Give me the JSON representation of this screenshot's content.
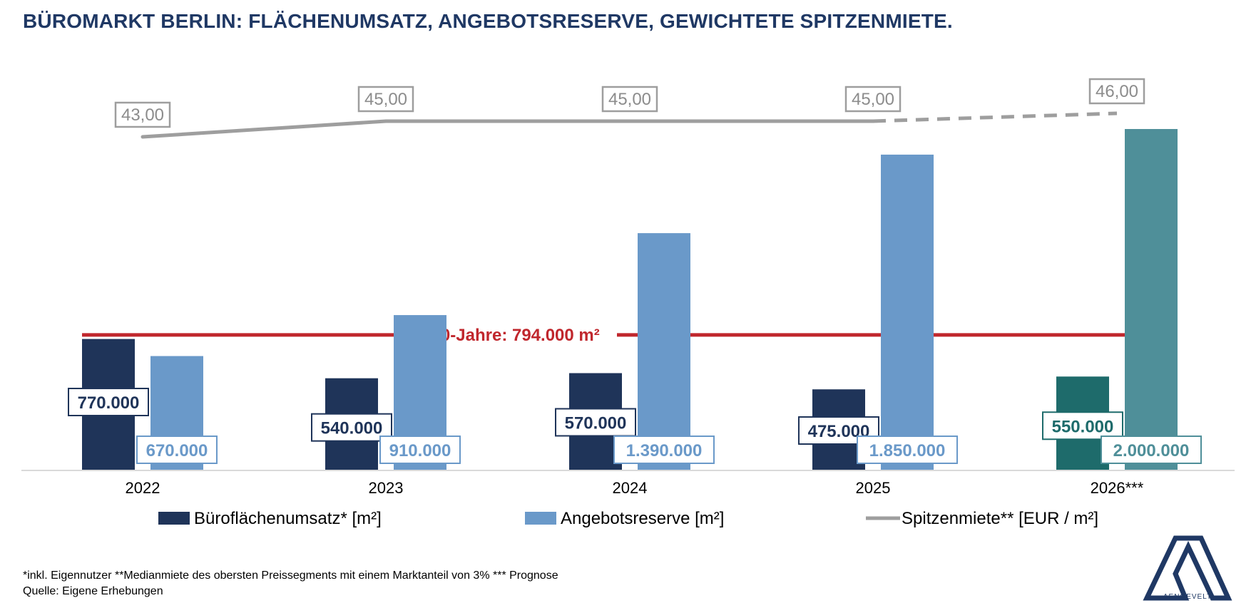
{
  "title": "BÜROMARKT BERLIN: FLÄCHENUMSATZ, ANGEBOTSRESERVE, GEWICHTETE SPITZENMIETE.",
  "footnotes": {
    "line1": "*inkl. Eigennutzer **Medianmiete des obersten Preissegments mit einem Marktanteil von 3% *** Prognose",
    "line2": "Quelle: Eigene Erhebungen"
  },
  "logo": {
    "text": "AENGEVELT",
    "icon": "aengevelt-logo-icon"
  },
  "chart_data": {
    "type": "bar",
    "categories": [
      "2022",
      "2023",
      "2024",
      "2025",
      "2026***"
    ],
    "ylim": [
      0,
      2000000
    ],
    "reference_line": {
      "value": 794000,
      "label": "Ø 10-Jahre: 794.000 m²",
      "color": "#c0272d"
    },
    "series": [
      {
        "name": "Büroflächenumsatz* [m²]",
        "values": [
          770000,
          540000,
          570000,
          475000,
          550000
        ],
        "labels": [
          "770.000",
          "540.000",
          "570.000",
          "475.000",
          "550.000"
        ],
        "color": "#1f3459",
        "forecast_color": "#1e6b6b"
      },
      {
        "name": "Angebotsreserve [m²]",
        "values": [
          670000,
          910000,
          1390000,
          1850000,
          2000000
        ],
        "labels": [
          "670.000",
          "910.000",
          "1.390.000",
          "1.850.000",
          "2.000.000"
        ],
        "color": "#6a99c9",
        "forecast_color": "#4f8f99"
      },
      {
        "name": "Spitzenmiete** [EUR / m²]",
        "type": "line",
        "values": [
          43,
          45,
          45,
          45,
          46
        ],
        "labels": [
          "43,00",
          "45,00",
          "45,00",
          "45,00",
          "46,00"
        ],
        "color": "#9e9e9e",
        "forecast_dashed_from_index": 3
      }
    ],
    "legend_position": "bottom"
  }
}
